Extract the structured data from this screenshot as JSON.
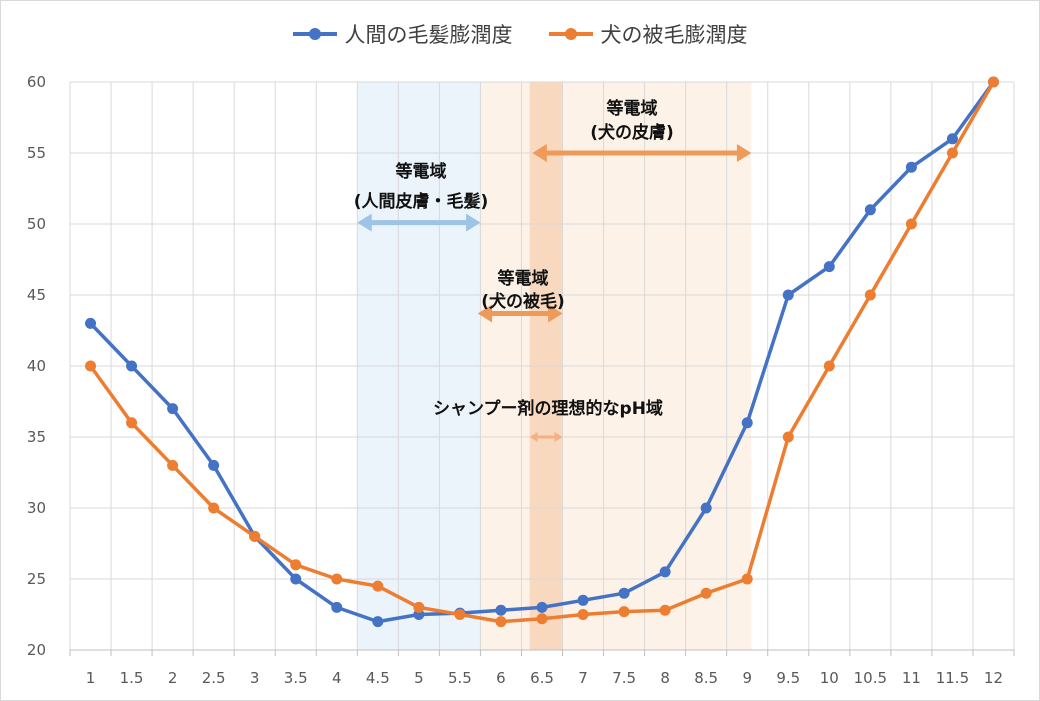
{
  "chart_data": {
    "type": "line",
    "x": [
      1,
      1.5,
      2,
      2.5,
      3,
      3.5,
      4,
      4.5,
      5,
      5.5,
      6,
      6.5,
      7,
      7.5,
      8,
      8.5,
      9,
      9.5,
      10,
      10.5,
      11,
      11.5,
      12
    ],
    "x_tick_labels": [
      "1",
      "1.5",
      "2",
      "2.5",
      "3",
      "3.5",
      "4",
      "4.5",
      "5",
      "5.5",
      "6",
      "6.5",
      "7",
      "7.5",
      "8",
      "8.5",
      "9",
      "9.5",
      "10",
      "10.5",
      "11",
      "11.5",
      "12"
    ],
    "ylim": [
      20,
      60
    ],
    "y_ticks": [
      20,
      25,
      30,
      35,
      40,
      45,
      50,
      55,
      60
    ],
    "grid": true,
    "legend_position": "top-center",
    "series": [
      {
        "name": "人間の毛髪膨潤度",
        "color": "#4472c4",
        "values": [
          43,
          40,
          37,
          33,
          28,
          25,
          23,
          22,
          22.5,
          22.6,
          22.8,
          23,
          23.5,
          24,
          25.5,
          30,
          36,
          45,
          47,
          51,
          54,
          56,
          60
        ]
      },
      {
        "name": "犬の被毛膨潤度",
        "color": "#ed7d31",
        "values": [
          40,
          36,
          33,
          30,
          28,
          26,
          25,
          24.5,
          23,
          22.5,
          22,
          22.2,
          22.5,
          22.7,
          22.8,
          24,
          25,
          35,
          40,
          45,
          50,
          55,
          60
        ]
      }
    ],
    "bands": [
      {
        "name": "human_isoelectric",
        "label_line1": "等電域",
        "label_line2": "(人間皮膚・毛髪)",
        "x_start": 4.25,
        "x_end": 5.75,
        "color": "#9dc3e6",
        "fill": "#eaf2fb"
      },
      {
        "name": "dog_skin_isoelectric",
        "label_line1": "等電域",
        "label_line2": "(犬の皮膚)",
        "x_start": 5.75,
        "x_end": 9.05,
        "color": "#f4b183",
        "fill": "#fdf1e7"
      },
      {
        "name": "dog_coat_isoelectric",
        "label_line1": "等電域",
        "label_line2": "(犬の被毛)",
        "x_start": 6.35,
        "x_end": 6.75,
        "color": "#f4b183",
        "fill": "#f9d6be"
      },
      {
        "name": "shampoo_ideal",
        "label_line1": "シャンプー剤の理想的なpH域",
        "label_line2": "",
        "x_start": 6.35,
        "x_end": 6.75,
        "color": "#f4b183",
        "fill": "#f9d6be"
      }
    ]
  },
  "legend": {
    "human_label": "人間の毛髪膨潤度",
    "dog_label": "犬の被毛膨潤度"
  },
  "colors": {
    "human": "#4472c4",
    "dog": "#ed7d31",
    "grid": "#d9d9d9",
    "arrow_blue": "#9dc3e6",
    "arrow_orange": "#f4b183"
  }
}
